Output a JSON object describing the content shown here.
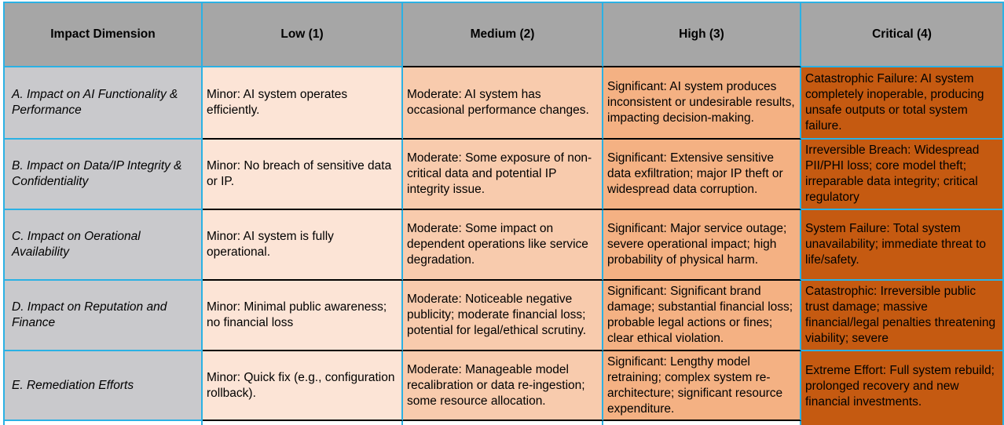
{
  "table": {
    "columns": [
      "Impact Dimension",
      "Low (1)",
      "Medium (2)",
      "High (3)",
      "Critical (4)"
    ],
    "rows": [
      {
        "key": "a",
        "dimension": "A. Impact on AI Functionality & Performance",
        "low": "Minor: AI system operates efficiently.",
        "medium": "Moderate: AI system has occasional performance changes.",
        "high": "Significant: AI system produces inconsistent or undesirable results, impacting decision-making.",
        "critical": "Catastrophic Failure: AI system completely inoperable, producing unsafe outputs or total system failure."
      },
      {
        "key": "b",
        "dimension": "B. Impact on Data/IP Integrity & Confidentiality",
        "low": "Minor: No breach of sensitive data or IP.",
        "medium": "Moderate: Some exposure of non-critical data and potential IP integrity issue.",
        "high": "Significant: Extensive sensitive data exfiltration; major IP theft or widespread data corruption.",
        "critical": "Irreversible Breach: Widespread PII/PHI loss; core model theft; irreparable data integrity; critical regulatory"
      },
      {
        "key": "c",
        "dimension": "C. Impact on Oerational Availability",
        "low": "Minor: AI system is fully operational.",
        "medium": "Moderate: Some impact on dependent operations like service degradation.",
        "high": "Significant: Major service outage; severe operational impact; high probability of physical harm.",
        "critical": "System Failure: Total system unavailability; immediate threat to life/safety."
      },
      {
        "key": "d",
        "dimension": "D. Impact on Reputation and Finance",
        "low": "Minor: Minimal public awareness; no financial loss",
        "medium": "Moderate: Noticeable negative publicity; moderate financial loss; potential for legal/ethical scrutiny.",
        "high": "Significant: Significant brand damage; substantial financial loss; probable legal actions or fines; clear ethical violation.",
        "critical": "Catastrophic: Irreversible public trust damage; massive financial/legal penalties threatening viability; severe"
      },
      {
        "key": "e",
        "dimension": "E. Remediation Efforts",
        "low": "Minor: Quick fix (e.g., configuration rollback).",
        "medium": "Moderate: Manageable model recalibration or data re-ingestion; some resource allocation.",
        "high": "Significant: Lengthy model retraining; complex system re-architecture; significant resource expenditure.",
        "critical": "Extreme Effort: Full system rebuild; prolonged recovery and new financial investments."
      }
    ]
  },
  "colors": {
    "header_bg": "#a6a6a6",
    "dimension_bg": "#c9c9cc",
    "low_bg": "#fce4d6",
    "medium_bg": "#f8cbad",
    "high_bg": "#f4b183",
    "critical_bg": "#c55a11",
    "grid_blue": "#2bb1e4",
    "grid_black": "#000000",
    "text": "#000000"
  }
}
